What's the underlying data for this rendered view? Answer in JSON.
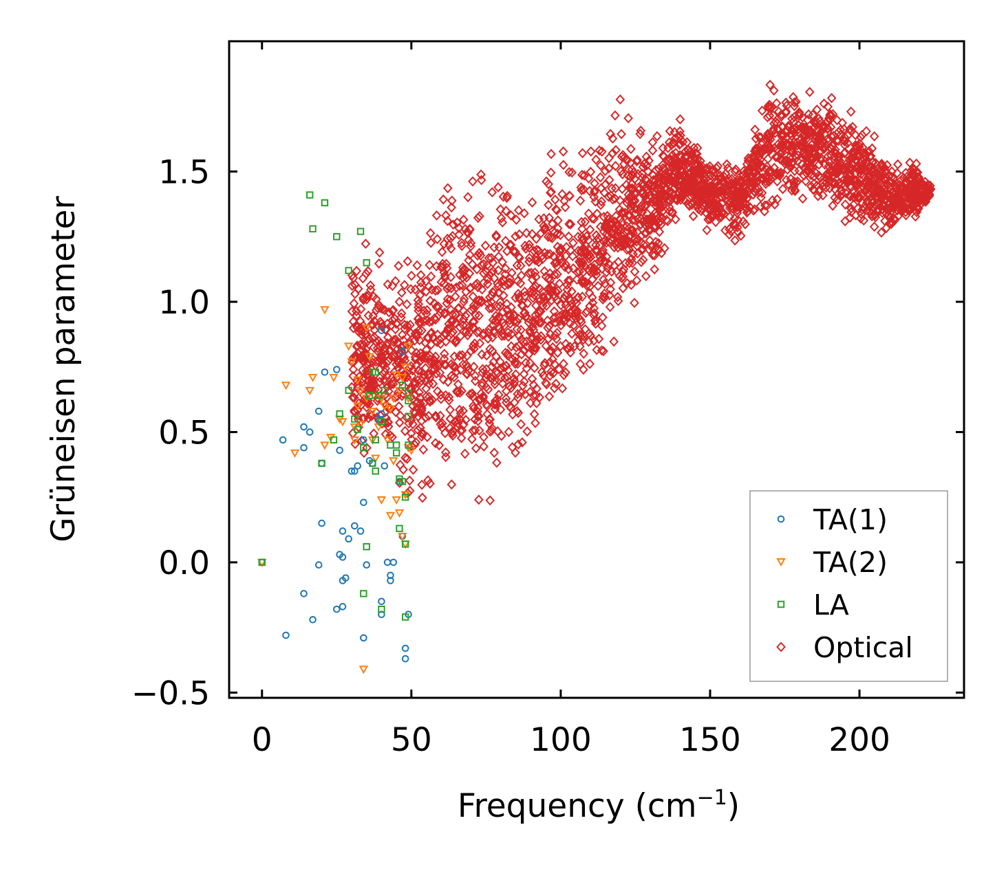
{
  "chart_data": {
    "type": "scatter",
    "title": "",
    "xlabel": "Frequency (cm",
    "xlabel_superscript": "−1",
    "xlabel_suffix": ")",
    "ylabel": "Grüneisen parameter",
    "xlim": [
      -11,
      235
    ],
    "ylim": [
      -0.52,
      2.0
    ],
    "xticks": [
      0,
      50,
      100,
      150,
      200
    ],
    "yticks": [
      -0.5,
      0.0,
      0.5,
      1.0,
      1.5
    ],
    "xtick_labels": [
      "0",
      "50",
      "100",
      "150",
      "200"
    ],
    "ytick_labels": [
      "−0.5",
      "0.0",
      "0.5",
      "1.0",
      "1.5"
    ],
    "grid": false,
    "legend_position": "lower-right",
    "series": [
      {
        "name": "TA(1)",
        "marker": "circle",
        "color": "#1f77b4",
        "points": [
          [
            0,
            0.0
          ],
          [
            7,
            0.47
          ],
          [
            8,
            -0.28
          ],
          [
            14,
            0.52
          ],
          [
            14,
            0.44
          ],
          [
            14,
            -0.12
          ],
          [
            16,
            0.5
          ],
          [
            17,
            -0.22
          ],
          [
            19,
            -0.01
          ],
          [
            19,
            0.58
          ],
          [
            20,
            0.15
          ],
          [
            20,
            0.38
          ],
          [
            21,
            0.73
          ],
          [
            25,
            0.74
          ],
          [
            25,
            -0.18
          ],
          [
            26,
            0.43
          ],
          [
            26,
            0.03
          ],
          [
            27,
            -0.17
          ],
          [
            27,
            0.12
          ],
          [
            27,
            0.02
          ],
          [
            27,
            -0.07
          ],
          [
            28,
            -0.06
          ],
          [
            29,
            0.09
          ],
          [
            30,
            0.35
          ],
          [
            31,
            0.35
          ],
          [
            31,
            0.14
          ],
          [
            32,
            0.37
          ],
          [
            33,
            0.12
          ],
          [
            34,
            0.47
          ],
          [
            34,
            0.23
          ],
          [
            34,
            -0.29
          ],
          [
            35,
            -0.01
          ],
          [
            36,
            0.39
          ],
          [
            37,
            0.38
          ],
          [
            39,
            0.55
          ],
          [
            40,
            0.89
          ],
          [
            40,
            0.57
          ],
          [
            40,
            -0.15
          ],
          [
            40,
            -0.2
          ],
          [
            41,
            0.37
          ],
          [
            42,
            0.0
          ],
          [
            43,
            -0.05
          ],
          [
            43,
            -0.07
          ],
          [
            44,
            0.0
          ],
          [
            46,
            0.31
          ],
          [
            47,
            0.81
          ],
          [
            47,
            0.1
          ],
          [
            48,
            -0.33
          ],
          [
            48,
            -0.37
          ],
          [
            49,
            -0.2
          ]
        ]
      },
      {
        "name": "TA(2)",
        "marker": "triangle-down",
        "color": "#ff7f0e",
        "points": [
          [
            0,
            0.0
          ],
          [
            8,
            0.68
          ],
          [
            11,
            0.42
          ],
          [
            16,
            0.66
          ],
          [
            17,
            0.71
          ],
          [
            21,
            0.97
          ],
          [
            21,
            0.45
          ],
          [
            23,
            0.48
          ],
          [
            24,
            0.71
          ],
          [
            26,
            0.55
          ],
          [
            27,
            0.54
          ],
          [
            29,
            0.83
          ],
          [
            30,
            0.77
          ],
          [
            31,
            0.47
          ],
          [
            31,
            0.52
          ],
          [
            32,
            0.6
          ],
          [
            32,
            0.7
          ],
          [
            33,
            0.53
          ],
          [
            33,
            0.66
          ],
          [
            34,
            -0.41
          ],
          [
            35,
            0.63
          ],
          [
            35,
            0.9
          ],
          [
            36,
            0.79
          ],
          [
            37,
            0.47
          ],
          [
            37,
            0.58
          ],
          [
            38,
            0.4
          ],
          [
            39,
            0.52
          ],
          [
            40,
            0.63
          ],
          [
            40,
            0.24
          ],
          [
            41,
            0.6
          ],
          [
            42,
            0.47
          ],
          [
            43,
            0.59
          ],
          [
            43,
            0.18
          ],
          [
            44,
            0.63
          ],
          [
            44,
            0.39
          ],
          [
            45,
            0.72
          ],
          [
            45,
            0.24
          ],
          [
            46,
            0.66
          ],
          [
            46,
            0.19
          ],
          [
            47,
            0.71
          ],
          [
            47,
            0.1
          ],
          [
            48,
            0.75
          ],
          [
            48,
            0.26
          ],
          [
            48,
            0.07
          ],
          [
            49,
            0.83
          ],
          [
            49,
            0.63
          ],
          [
            49,
            0.44
          ],
          [
            50,
            0.43
          ]
        ]
      },
      {
        "name": "LA",
        "marker": "square",
        "color": "#2ca02c",
        "points": [
          [
            0,
            0.0
          ],
          [
            16,
            1.41
          ],
          [
            17,
            1.28
          ],
          [
            21,
            1.38
          ],
          [
            20,
            0.38
          ],
          [
            25,
            1.25
          ],
          [
            24,
            0.47
          ],
          [
            26,
            0.57
          ],
          [
            29,
            1.12
          ],
          [
            29,
            0.66
          ],
          [
            31,
            0.55
          ],
          [
            32,
            0.51
          ],
          [
            33,
            1.27
          ],
          [
            34,
            0.44
          ],
          [
            34,
            -0.12
          ],
          [
            35,
            1.15
          ],
          [
            35,
            0.06
          ],
          [
            36,
            0.64
          ],
          [
            37,
            0.73
          ],
          [
            37,
            0.38
          ],
          [
            38,
            0.73
          ],
          [
            38,
            0.47
          ],
          [
            38,
            0.35
          ],
          [
            39,
            0.64
          ],
          [
            40,
            0.54
          ],
          [
            40,
            -0.18
          ],
          [
            41,
            0.66
          ],
          [
            43,
            0.45
          ],
          [
            45,
            0.45
          ],
          [
            45,
            0.42
          ],
          [
            46,
            0.32
          ],
          [
            46,
            0.13
          ],
          [
            47,
            0.31
          ],
          [
            47,
            0.68
          ],
          [
            48,
            0.25
          ],
          [
            48,
            -0.21
          ],
          [
            48,
            0.07
          ],
          [
            49,
            0.62
          ],
          [
            49,
            0.56
          ],
          [
            49,
            0.45
          ],
          [
            49,
            0.65
          ]
        ]
      },
      {
        "name": "Optical",
        "marker": "diamond",
        "color": "#d62728",
        "generated": true,
        "envelope_x": [
          30,
          40,
          50,
          55,
          60,
          70,
          80,
          90,
          100,
          110,
          120,
          130,
          140,
          150,
          160,
          170,
          180,
          190,
          200,
          210,
          220,
          224
        ],
        "envelope_ymin": [
          0.25,
          0.25,
          0.1,
          0.12,
          0.1,
          0.05,
          0.1,
          0.35,
          0.4,
          0.55,
          0.8,
          1.05,
          1.3,
          1.25,
          1.2,
          1.3,
          1.35,
          1.3,
          1.25,
          1.2,
          1.3,
          1.4
        ],
        "envelope_ymax": [
          1.4,
          1.25,
          1.3,
          1.45,
          1.6,
          1.75,
          1.6,
          1.55,
          1.7,
          1.75,
          1.85,
          1.65,
          1.75,
          1.55,
          1.6,
          1.87,
          1.88,
          1.85,
          1.75,
          1.6,
          1.55,
          1.45
        ],
        "count": 3000
      }
    ]
  }
}
